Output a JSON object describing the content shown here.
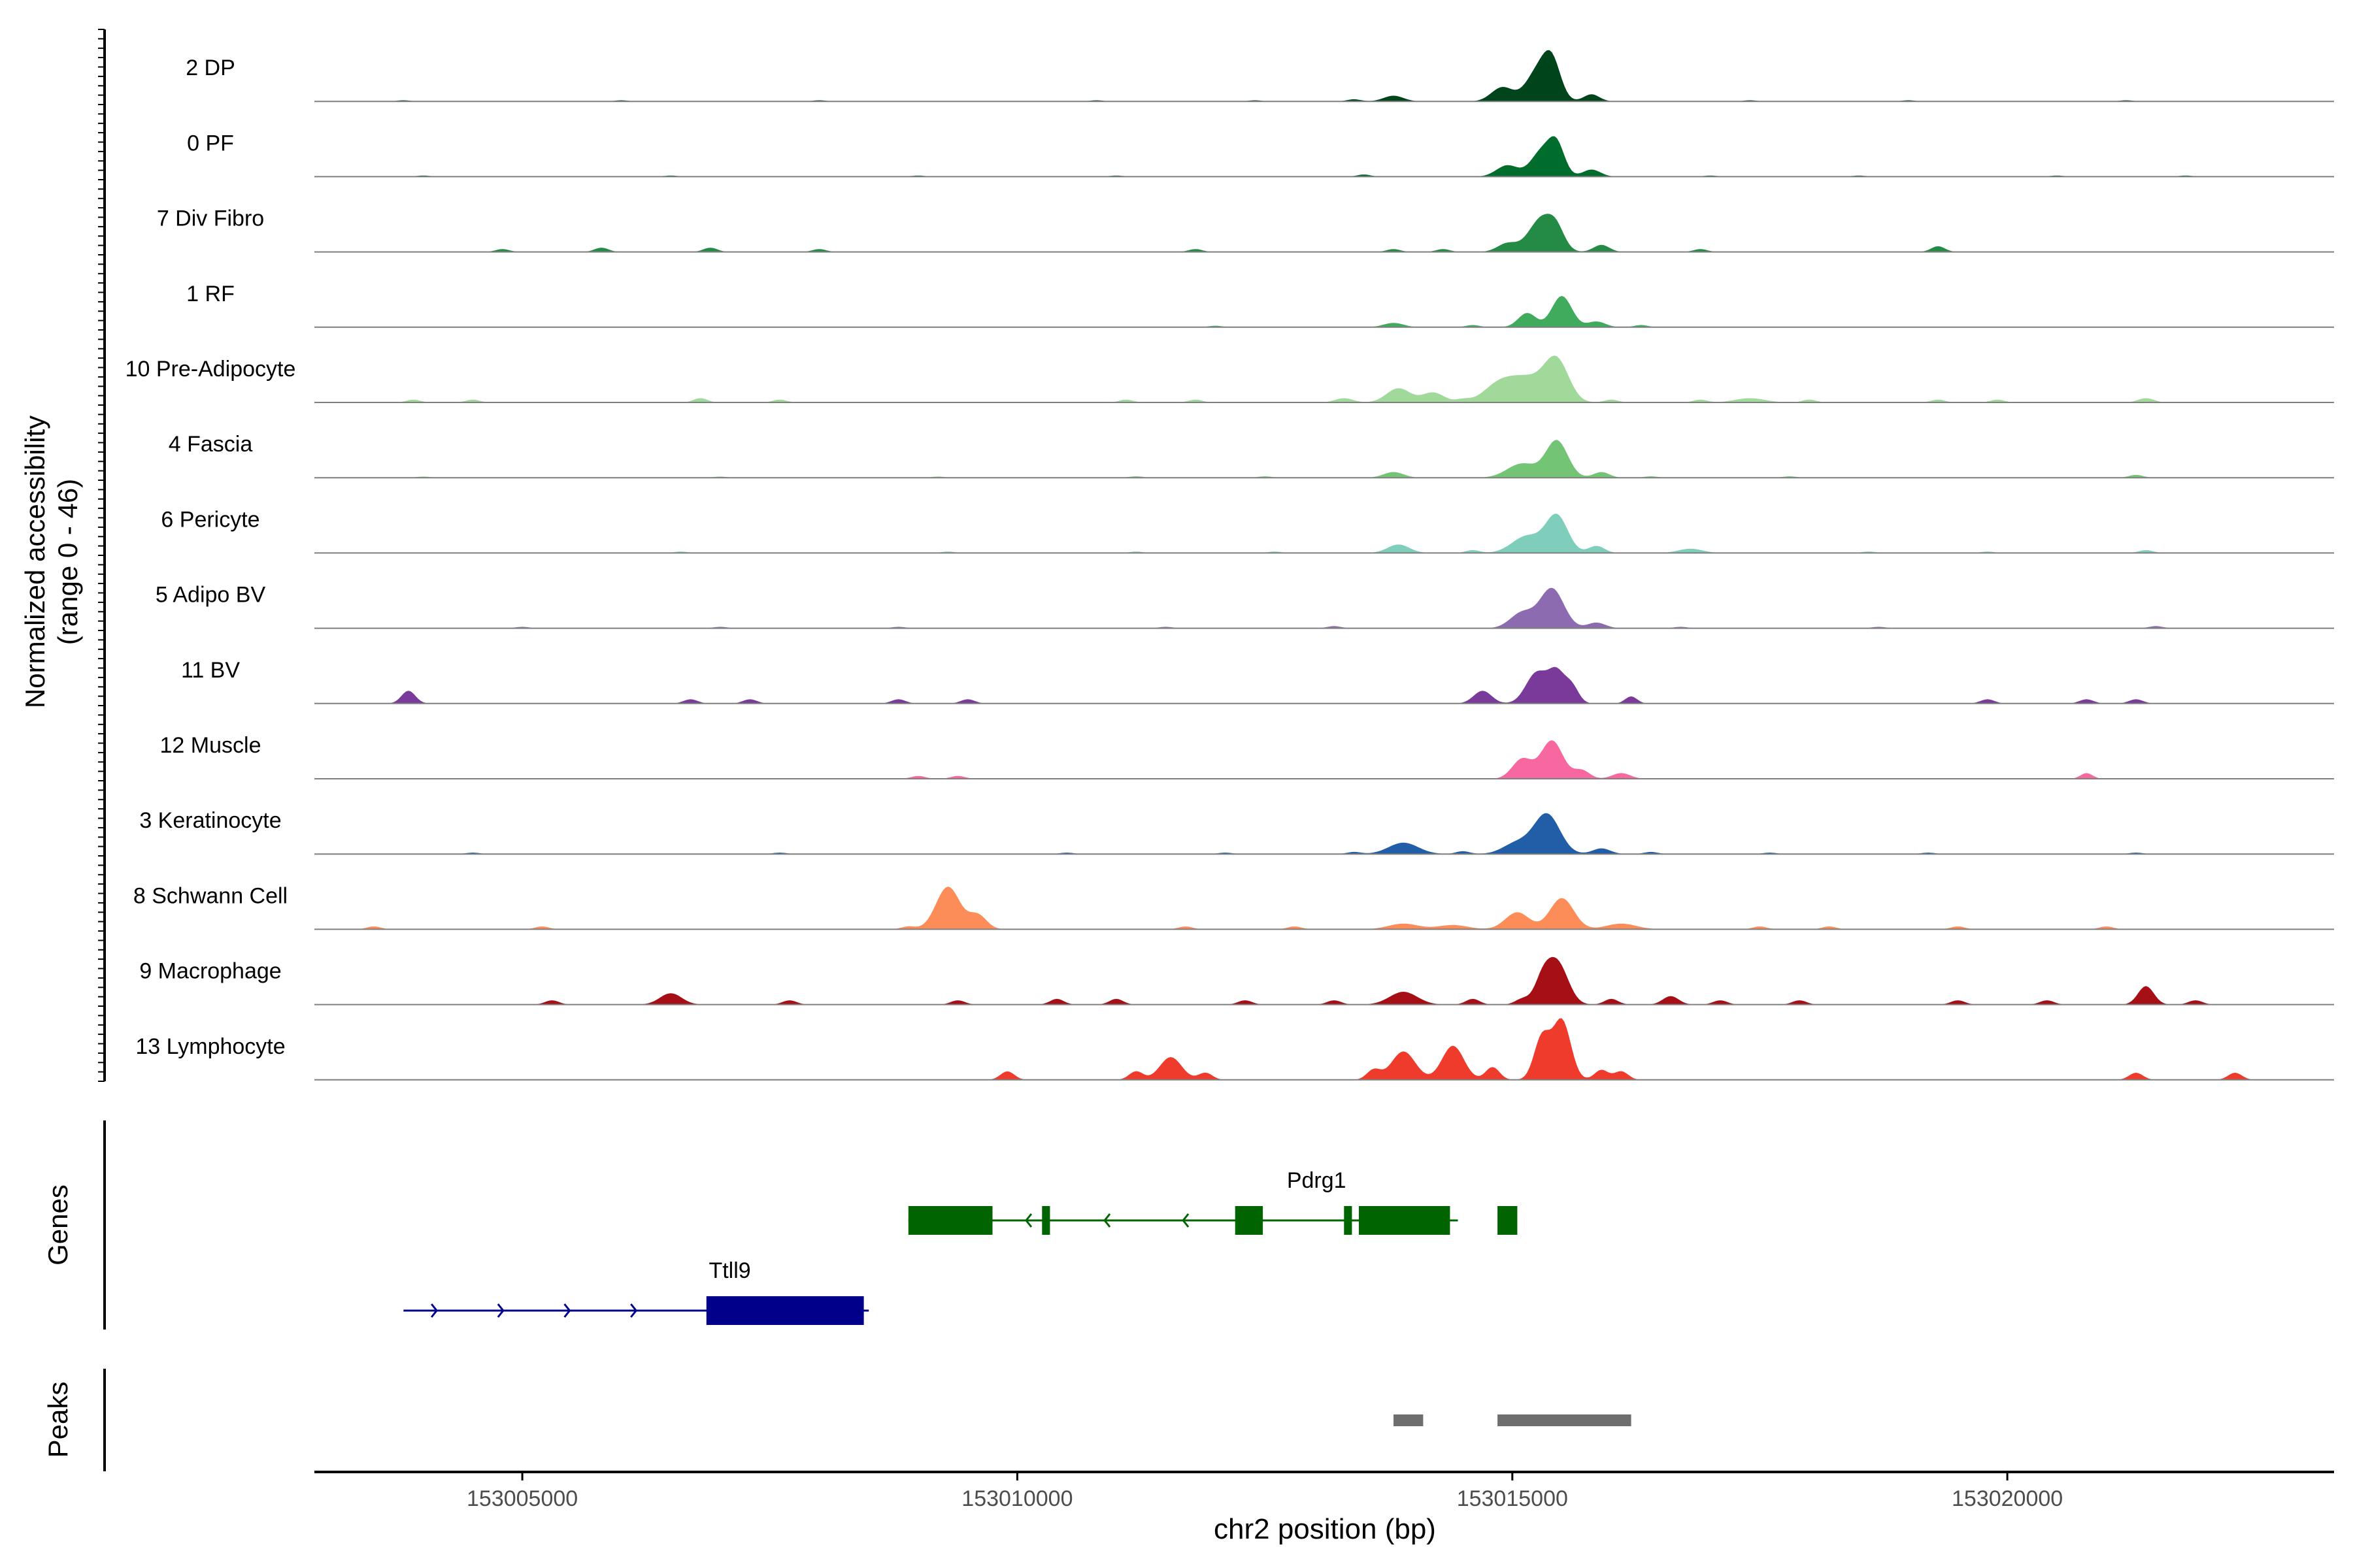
{
  "chart_data": {
    "type": "area",
    "ylabel_line1": "Normalized accessibility",
    "ylabel_line2": "(range 0 - 46)",
    "xlabel": "chr2 position (bp)",
    "xlim": [
      153002900,
      153023300
    ],
    "ylim": [
      0,
      46
    ],
    "xticks": [
      153005000,
      153010000,
      153015000,
      153020000
    ],
    "xtick_labels": [
      "153005000",
      "153010000",
      "153015000",
      "153020000"
    ],
    "series": [
      {
        "name": "2 DP",
        "color": "#00441B",
        "peaks": [
          [
            153015250,
            115,
            20
          ],
          [
            153015400,
            90,
            26
          ],
          [
            153014900,
            110,
            10
          ],
          [
            153013800,
            100,
            4
          ],
          [
            153015800,
            80,
            5
          ]
        ],
        "noise": [
          [
            153003800,
            0.8
          ],
          [
            153006000,
            0.8
          ],
          [
            153008000,
            0.8
          ],
          [
            153010800,
            0.8
          ],
          [
            153012400,
            0.8
          ],
          [
            153013400,
            1.5
          ],
          [
            153017400,
            0.8
          ],
          [
            153019000,
            0.8
          ],
          [
            153021200,
            0.8
          ]
        ]
      },
      {
        "name": "0 PF",
        "color": "#006D2C",
        "peaks": [
          [
            153015300,
            110,
            18
          ],
          [
            153015450,
            80,
            20
          ],
          [
            153014950,
            110,
            8
          ],
          [
            153015800,
            90,
            5
          ]
        ],
        "noise": [
          [
            153004000,
            0.8
          ],
          [
            153006500,
            0.8
          ],
          [
            153009000,
            0.8
          ],
          [
            153011000,
            0.8
          ],
          [
            153013500,
            1.5
          ],
          [
            153017000,
            0.8
          ],
          [
            153018500,
            0.8
          ],
          [
            153020500,
            0.8
          ],
          [
            153021800,
            0.8
          ]
        ]
      },
      {
        "name": "7 Div Fibro",
        "color": "#238B45",
        "peaks": [
          [
            153015300,
            130,
            24
          ],
          [
            153015450,
            80,
            10
          ],
          [
            153014950,
            100,
            6
          ],
          [
            153015900,
            80,
            5
          ]
        ],
        "noise": [
          [
            153004800,
            2
          ],
          [
            153005800,
            3
          ],
          [
            153006900,
            3
          ],
          [
            153008000,
            2
          ],
          [
            153011800,
            2
          ],
          [
            153013800,
            2
          ],
          [
            153014300,
            2
          ],
          [
            153016900,
            2
          ],
          [
            153019300,
            4
          ]
        ]
      },
      {
        "name": "1 RF",
        "color": "#41AB5D",
        "peaks": [
          [
            153015500,
            100,
            22
          ],
          [
            153015150,
            90,
            10
          ],
          [
            153013800,
            100,
            3
          ],
          [
            153015850,
            90,
            4
          ]
        ],
        "noise": [
          [
            153014600,
            1.5
          ],
          [
            153016300,
            1.5
          ],
          [
            153012000,
            1
          ]
        ]
      },
      {
        "name": "10 Pre-Adipocyte",
        "color": "#A1D99B",
        "peaks": [
          [
            153015450,
            120,
            27
          ],
          [
            153015150,
            200,
            17
          ],
          [
            153014850,
            150,
            10
          ],
          [
            153013850,
            120,
            10
          ],
          [
            153014200,
            110,
            7
          ],
          [
            153013300,
            90,
            3
          ],
          [
            153017400,
            150,
            3
          ],
          [
            153021400,
            80,
            3
          ]
        ],
        "noise": [
          [
            153003900,
            2
          ],
          [
            153004500,
            2
          ],
          [
            153006800,
            3
          ],
          [
            153007600,
            2
          ],
          [
            153011100,
            2
          ],
          [
            153011800,
            2
          ],
          [
            153014500,
            2
          ],
          [
            153016000,
            2
          ],
          [
            153016900,
            2
          ],
          [
            153018000,
            2
          ],
          [
            153019300,
            2
          ],
          [
            153019900,
            2
          ]
        ]
      },
      {
        "name": "4 Fascia",
        "color": "#74C476",
        "peaks": [
          [
            153015450,
            110,
            26
          ],
          [
            153015100,
            150,
            10
          ],
          [
            153013800,
            100,
            4
          ],
          [
            153015900,
            80,
            4
          ]
        ],
        "noise": [
          [
            153004000,
            0.8
          ],
          [
            153007000,
            0.8
          ],
          [
            153009200,
            0.8
          ],
          [
            153011200,
            1
          ],
          [
            153012500,
            1
          ],
          [
            153016400,
            1
          ],
          [
            153017800,
            1
          ],
          [
            153021300,
            2
          ]
        ]
      },
      {
        "name": "6 Pericyte",
        "color": "#7FCDBB",
        "peaks": [
          [
            153015450,
            110,
            26
          ],
          [
            153015150,
            150,
            12
          ],
          [
            153013850,
            110,
            6
          ],
          [
            153015850,
            80,
            5
          ],
          [
            153016800,
            120,
            3
          ]
        ],
        "noise": [
          [
            153006600,
            1
          ],
          [
            153009300,
            1
          ],
          [
            153011200,
            1
          ],
          [
            153012600,
            1
          ],
          [
            153014600,
            2
          ],
          [
            153018600,
            1
          ],
          [
            153019800,
            1
          ],
          [
            153021400,
            2
          ]
        ]
      },
      {
        "name": "5 Adipo BV",
        "color": "#8C6BB1",
        "peaks": [
          [
            153015400,
            120,
            28
          ],
          [
            153015100,
            120,
            11
          ],
          [
            153015850,
            90,
            4
          ]
        ],
        "noise": [
          [
            153005000,
            1
          ],
          [
            153007000,
            1
          ],
          [
            153008800,
            1
          ],
          [
            153011500,
            1
          ],
          [
            153013200,
            1.5
          ],
          [
            153016700,
            1
          ],
          [
            153018700,
            1
          ],
          [
            153021500,
            1.5
          ]
        ]
      },
      {
        "name": "11 BV",
        "color": "#7A3A9A",
        "peaks": [
          [
            153015250,
            110,
            22
          ],
          [
            153015450,
            80,
            20
          ],
          [
            153015600,
            70,
            12
          ],
          [
            153014700,
            90,
            9
          ],
          [
            153003850,
            70,
            9
          ],
          [
            153016200,
            60,
            5
          ]
        ],
        "noise": [
          [
            153006700,
            3
          ],
          [
            153007300,
            3
          ],
          [
            153008800,
            3
          ],
          [
            153009500,
            3
          ],
          [
            153019800,
            3
          ],
          [
            153020800,
            3
          ],
          [
            153021300,
            3
          ]
        ]
      },
      {
        "name": "12 Muscle",
        "color": "#F768A1",
        "peaks": [
          [
            153015400,
            110,
            27
          ],
          [
            153015100,
            100,
            14
          ],
          [
            153015700,
            80,
            6
          ],
          [
            153016100,
            90,
            4
          ],
          [
            153020800,
            60,
            4
          ]
        ],
        "noise": [
          [
            153009000,
            2
          ],
          [
            153009400,
            2
          ]
        ]
      },
      {
        "name": "3 Keratinocyte",
        "color": "#225EA8",
        "peaks": [
          [
            153015350,
            130,
            28
          ],
          [
            153015050,
            140,
            8
          ],
          [
            153013900,
            150,
            8
          ],
          [
            153015900,
            90,
            4
          ]
        ],
        "noise": [
          [
            153004500,
            1
          ],
          [
            153007600,
            1
          ],
          [
            153010500,
            1
          ],
          [
            153012100,
            1
          ],
          [
            153013400,
            1.5
          ],
          [
            153014500,
            2
          ],
          [
            153016400,
            1.5
          ],
          [
            153017600,
            1
          ],
          [
            153019200,
            1
          ],
          [
            153021300,
            1
          ]
        ]
      },
      {
        "name": "8 Schwann Cell",
        "color": "#FC8D59",
        "peaks": [
          [
            153009300,
            120,
            30
          ],
          [
            153009600,
            90,
            10
          ],
          [
            153015500,
            120,
            22
          ],
          [
            153015050,
            120,
            12
          ],
          [
            153013900,
            150,
            4
          ],
          [
            153014400,
            150,
            3
          ],
          [
            153016100,
            150,
            4
          ]
        ],
        "noise": [
          [
            153003500,
            2
          ],
          [
            153005200,
            2
          ],
          [
            153008900,
            2
          ],
          [
            153011700,
            2
          ],
          [
            153012800,
            2
          ],
          [
            153017500,
            2
          ],
          [
            153018200,
            2
          ],
          [
            153019500,
            2
          ],
          [
            153021000,
            2
          ]
        ]
      },
      {
        "name": "9 Macrophage",
        "color": "#A50F15",
        "peaks": [
          [
            153015450,
            110,
            30
          ],
          [
            153015300,
            80,
            14
          ],
          [
            153006500,
            110,
            8
          ],
          [
            153013900,
            140,
            9
          ],
          [
            153021400,
            80,
            13
          ],
          [
            153016600,
            80,
            6
          ]
        ],
        "noise": [
          [
            153005300,
            3
          ],
          [
            153007700,
            3
          ],
          [
            153009400,
            3
          ],
          [
            153010400,
            4
          ],
          [
            153011000,
            4
          ],
          [
            153012300,
            3
          ],
          [
            153013200,
            3
          ],
          [
            153014600,
            4
          ],
          [
            153015100,
            4
          ],
          [
            153016000,
            4
          ],
          [
            153017100,
            3
          ],
          [
            153017900,
            3
          ],
          [
            153019500,
            3
          ],
          [
            153020400,
            3
          ],
          [
            153021900,
            3
          ]
        ]
      },
      {
        "name": "13 Lymphocyte",
        "color": "#EF3B2C",
        "peaks": [
          [
            153015500,
            90,
            42
          ],
          [
            153015300,
            80,
            30
          ],
          [
            153013900,
            120,
            20
          ],
          [
            153014400,
            110,
            24
          ],
          [
            153011550,
            110,
            16
          ],
          [
            153014800,
            70,
            9
          ],
          [
            153016100,
            70,
            6
          ]
        ],
        "noise": [
          [
            153009900,
            6
          ],
          [
            153011200,
            6
          ],
          [
            153011900,
            5
          ],
          [
            153013600,
            7
          ],
          [
            153015900,
            7
          ],
          [
            153021300,
            5
          ],
          [
            153022300,
            5
          ]
        ]
      }
    ],
    "genes": [
      {
        "name": "Pdrg1",
        "color": "#006400",
        "strand": "-",
        "start": 153008900,
        "end": 153014450,
        "exons": [
          [
            153008900,
            153009750
          ],
          [
            153010250,
            153010330
          ],
          [
            153012200,
            153012480
          ],
          [
            153013300,
            153013380
          ],
          [
            153013450,
            153014370
          ],
          [
            153014850,
            153015050
          ]
        ]
      },
      {
        "name": "Ttll9",
        "color": "#00008B",
        "strand": "+",
        "start": 153003800,
        "end": 153008500,
        "exons": [
          [
            153006860,
            153008450
          ]
        ]
      }
    ],
    "peaks": [
      [
        153013800,
        153014100
      ],
      [
        153014850,
        153016200
      ]
    ],
    "panel_labels": {
      "genes": "Genes",
      "peaks": "Peaks"
    }
  }
}
